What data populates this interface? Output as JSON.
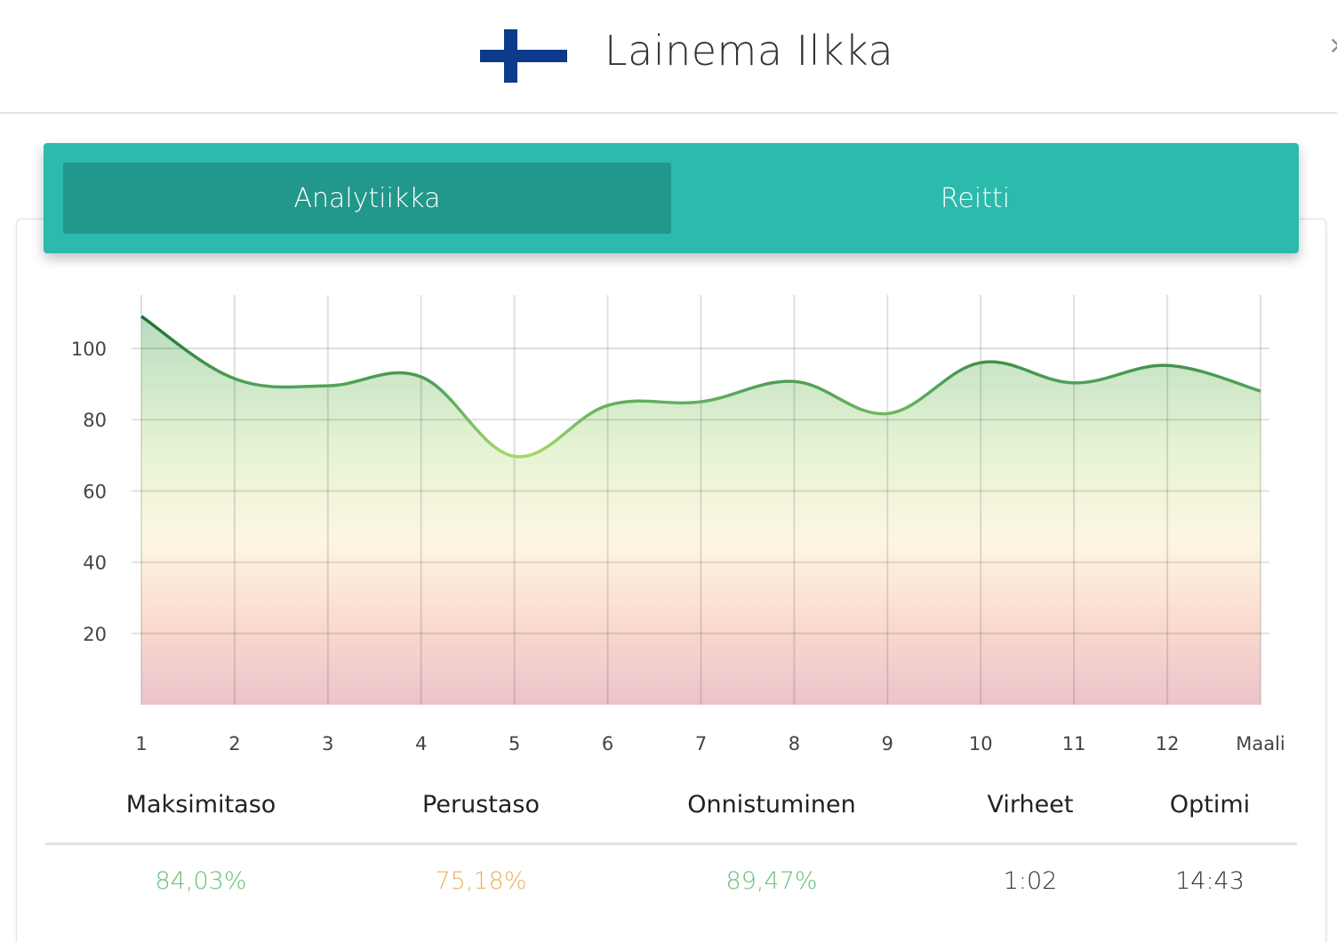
{
  "header": {
    "athlete_name": "Lainema Ilkka",
    "flag_icon": "finland-flag-icon",
    "close_label": "×"
  },
  "tabs": [
    {
      "label": "Analytiikka",
      "active": true
    },
    {
      "label": "Reitti",
      "active": false
    }
  ],
  "chart_data": {
    "type": "area",
    "x": [
      "1",
      "2",
      "3",
      "4",
      "5",
      "6",
      "7",
      "8",
      "9",
      "10",
      "11",
      "12",
      "Maali"
    ],
    "series": [
      {
        "values": [
          109,
          91.5,
          89.5,
          92,
          69.7,
          84,
          85,
          90.7,
          81.7,
          96,
          90.3,
          95.2,
          88
        ]
      }
    ],
    "yticks": [
      20,
      40,
      60,
      80,
      100
    ],
    "ylim": [
      0,
      115
    ],
    "grid": true,
    "line_color": "#2f8a3c",
    "fill_gradient": [
      "#b9dcbf",
      "#e6f4d4",
      "#fdf6e1",
      "#fbdccf",
      "#ecc3ca"
    ]
  },
  "stats": {
    "headers": [
      "Maksimitaso",
      "Perustaso",
      "Onnistuminen",
      "Virheet",
      "Optimi"
    ],
    "values": [
      "84,03%",
      "75,18%",
      "89,47%",
      "1:02",
      "14:43"
    ],
    "value_colors": [
      "#6cbf7a",
      "#e9b25f",
      "#6cbf7a",
      "#333333",
      "#333333"
    ]
  }
}
